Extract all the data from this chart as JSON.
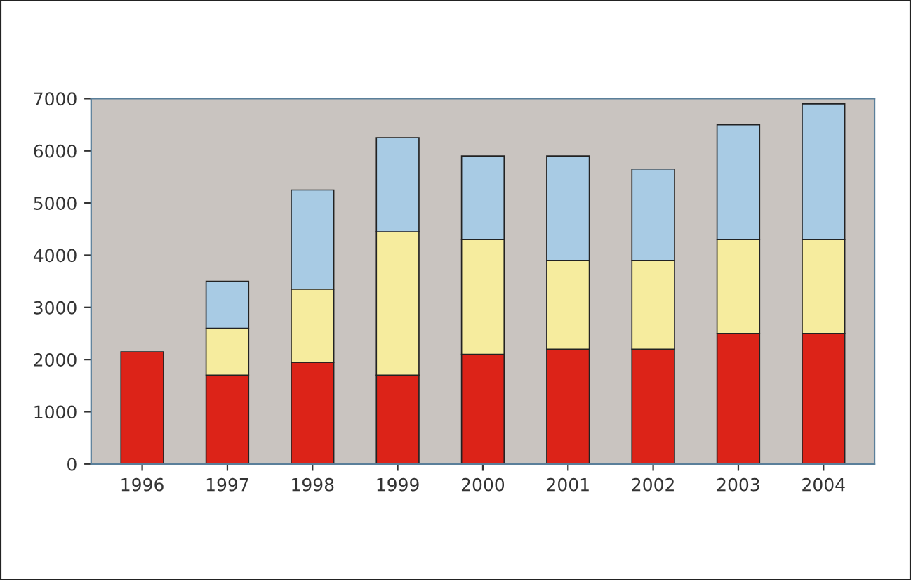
{
  "chart_data": {
    "type": "bar",
    "stacked": true,
    "categories": [
      "1996",
      "1997",
      "1998",
      "1999",
      "2000",
      "2001",
      "2002",
      "2003",
      "2004"
    ],
    "series": [
      {
        "color": "#dc2318",
        "values": [
          2150,
          1700,
          1950,
          1700,
          2100,
          2200,
          2200,
          2500,
          2500
        ]
      },
      {
        "color": "#f6ec9e",
        "values": [
          null,
          900,
          1400,
          2750,
          2200,
          1700,
          1700,
          1800,
          1800
        ]
      },
      {
        "color": "#a8cbe4",
        "values": [
          null,
          900,
          1900,
          1800,
          1600,
          2000,
          1750,
          2200,
          2600
        ]
      }
    ],
    "ylim": [
      0,
      7000
    ],
    "yticks": [
      0,
      1000,
      2000,
      3000,
      4000,
      5000,
      6000,
      7000
    ],
    "grid": false
  }
}
